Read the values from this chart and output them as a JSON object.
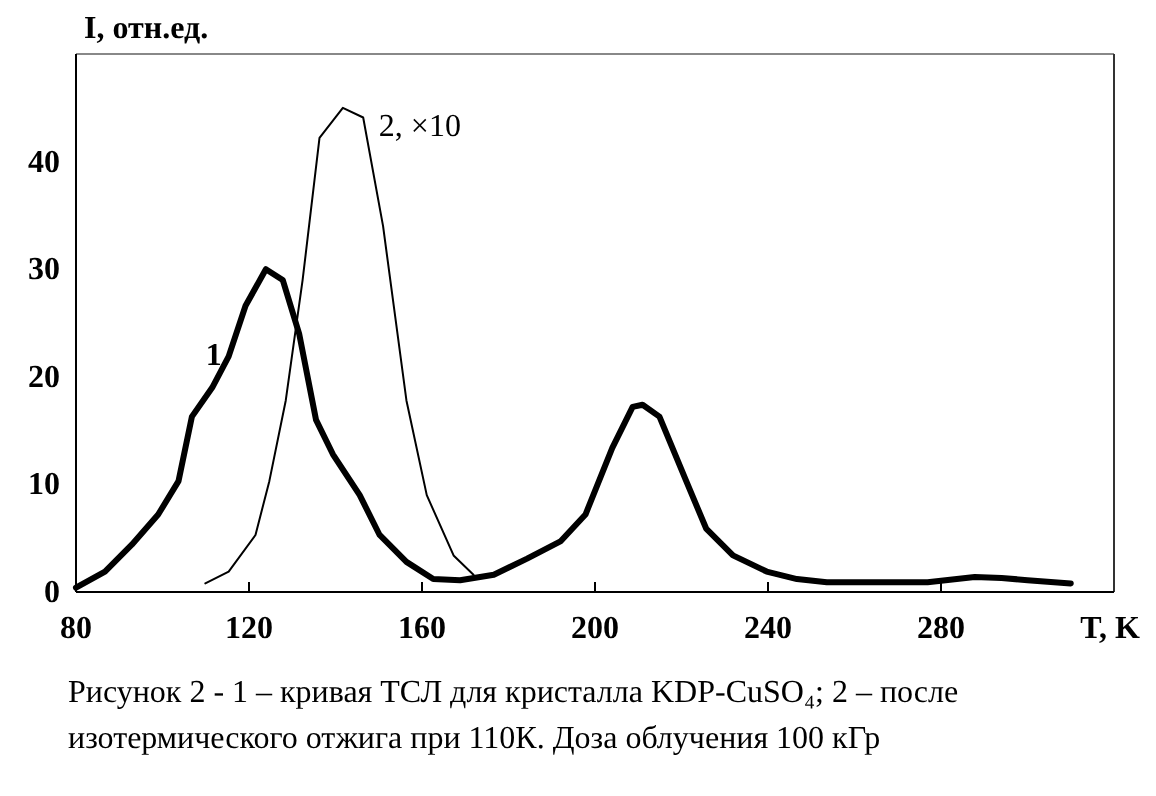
{
  "chart_data": {
    "type": "line",
    "xlabel": "T, K",
    "ylabel": "I, отн.ед.",
    "xlim": [
      80,
      320
    ],
    "xticks": [
      80,
      120,
      160,
      200,
      240,
      280
    ],
    "ylim": [
      0,
      50
    ],
    "yticks": [
      0,
      10,
      20,
      30,
      40
    ],
    "grid": false,
    "marker": "none",
    "line_style": "solid",
    "series": [
      {
        "name": "1",
        "color": "#000000",
        "x": [
          80,
          86.7,
          92.9,
          99,
          103.7,
          106.8,
          111.5,
          115.3,
          119.2,
          123.9,
          127.8,
          131.6,
          135.5,
          139.4,
          145.6,
          150.2,
          156.4,
          162.6,
          168.8,
          176.6,
          184.3,
          192,
          197.8,
          204,
          208.7,
          211,
          214.9,
          221.1,
          225.7,
          231.9,
          239.7,
          246.7,
          253.6,
          276.9,
          287.8,
          294,
          300,
          310
        ],
        "values": [
          0.4,
          1.9,
          4.4,
          7.2,
          10.3,
          16.3,
          19,
          21.9,
          26.6,
          30,
          29,
          24,
          16,
          12.8,
          9,
          5.3,
          2.8,
          1.2,
          1.1,
          1.6,
          3.1,
          4.7,
          7.2,
          13.4,
          17.2,
          17.4,
          16.3,
          10.3,
          5.9,
          3.4,
          1.9,
          1.2,
          0.9,
          0.9,
          1.4,
          1.3,
          1.1,
          0.8
        ]
      },
      {
        "name": "2, ×10",
        "color": "#000000",
        "x": [
          109.9,
          115.3,
          121.5,
          124.7,
          128.5,
          132.4,
          136.3,
          141.7,
          146.4,
          151,
          156.4,
          161.1,
          167.3,
          171.9
        ],
        "values": [
          0.8,
          1.9,
          5.3,
          10.3,
          17.8,
          29,
          42.2,
          45,
          44.1,
          34,
          17.8,
          9,
          3.4,
          1.6
        ]
      }
    ],
    "annotations": [
      "Рисунок 2 - 1 – кривая ТСЛ для кристалла KDP-CuSO₄; 2 – после",
      "изотермического отжига при 110К.  Доза облучения 100 кГр"
    ]
  }
}
